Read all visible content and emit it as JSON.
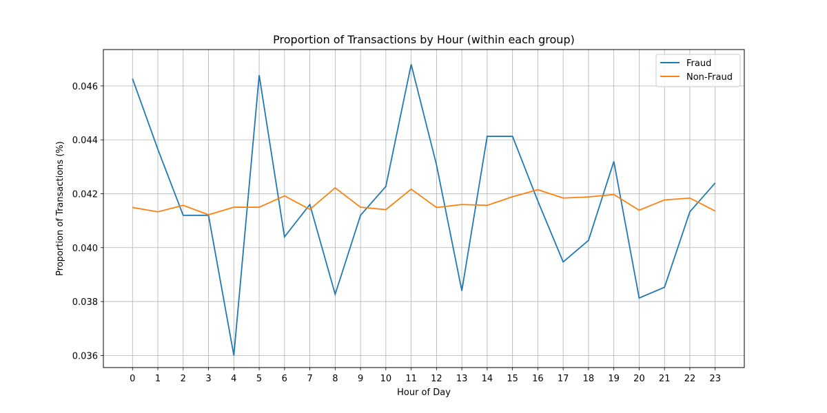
{
  "chart_data": {
    "type": "line",
    "title": "Proportion of Transactions by Hour (within each group)",
    "xlabel": "Hour of Day",
    "ylabel": "Proportion of Transactions (%)",
    "x": [
      0,
      1,
      2,
      3,
      4,
      5,
      6,
      7,
      8,
      9,
      10,
      11,
      12,
      13,
      14,
      15,
      16,
      17,
      18,
      19,
      20,
      21,
      22,
      23
    ],
    "x_tick_labels": [
      "0",
      "1",
      "2",
      "3",
      "4",
      "5",
      "6",
      "7",
      "8",
      "9",
      "10",
      "11",
      "12",
      "13",
      "14",
      "15",
      "16",
      "17",
      "18",
      "19",
      "20",
      "21",
      "22",
      "23"
    ],
    "xlim": [
      -1.15,
      24.15
    ],
    "ylim": [
      0.03555,
      0.04735
    ],
    "y_ticks": [
      0.036,
      0.038,
      0.04,
      0.042,
      0.044,
      0.046
    ],
    "y_tick_labels": [
      "0.036",
      "0.038",
      "0.040",
      "0.042",
      "0.044",
      "0.046"
    ],
    "grid": true,
    "legend_position": "top-right",
    "series": [
      {
        "name": "Fraud",
        "color": "#1f77b4",
        "values": [
          0.04627,
          0.04365,
          0.0412,
          0.0412,
          0.036,
          0.0464,
          0.0404,
          0.0416,
          0.03827,
          0.0412,
          0.04227,
          0.0468,
          0.04307,
          0.0384,
          0.04413,
          0.04413,
          0.04173,
          0.03947,
          0.04027,
          0.0432,
          0.03813,
          0.03853,
          0.04133,
          0.0424
        ]
      },
      {
        "name": "Non-Fraud",
        "color": "#ff7f0e",
        "values": [
          0.04149,
          0.04133,
          0.04157,
          0.04122,
          0.0415,
          0.0415,
          0.04192,
          0.04142,
          0.04222,
          0.0415,
          0.04141,
          0.04217,
          0.04149,
          0.0416,
          0.04157,
          0.04189,
          0.04215,
          0.04184,
          0.04188,
          0.04197,
          0.04139,
          0.04177,
          0.04184,
          0.04136
        ]
      }
    ]
  }
}
